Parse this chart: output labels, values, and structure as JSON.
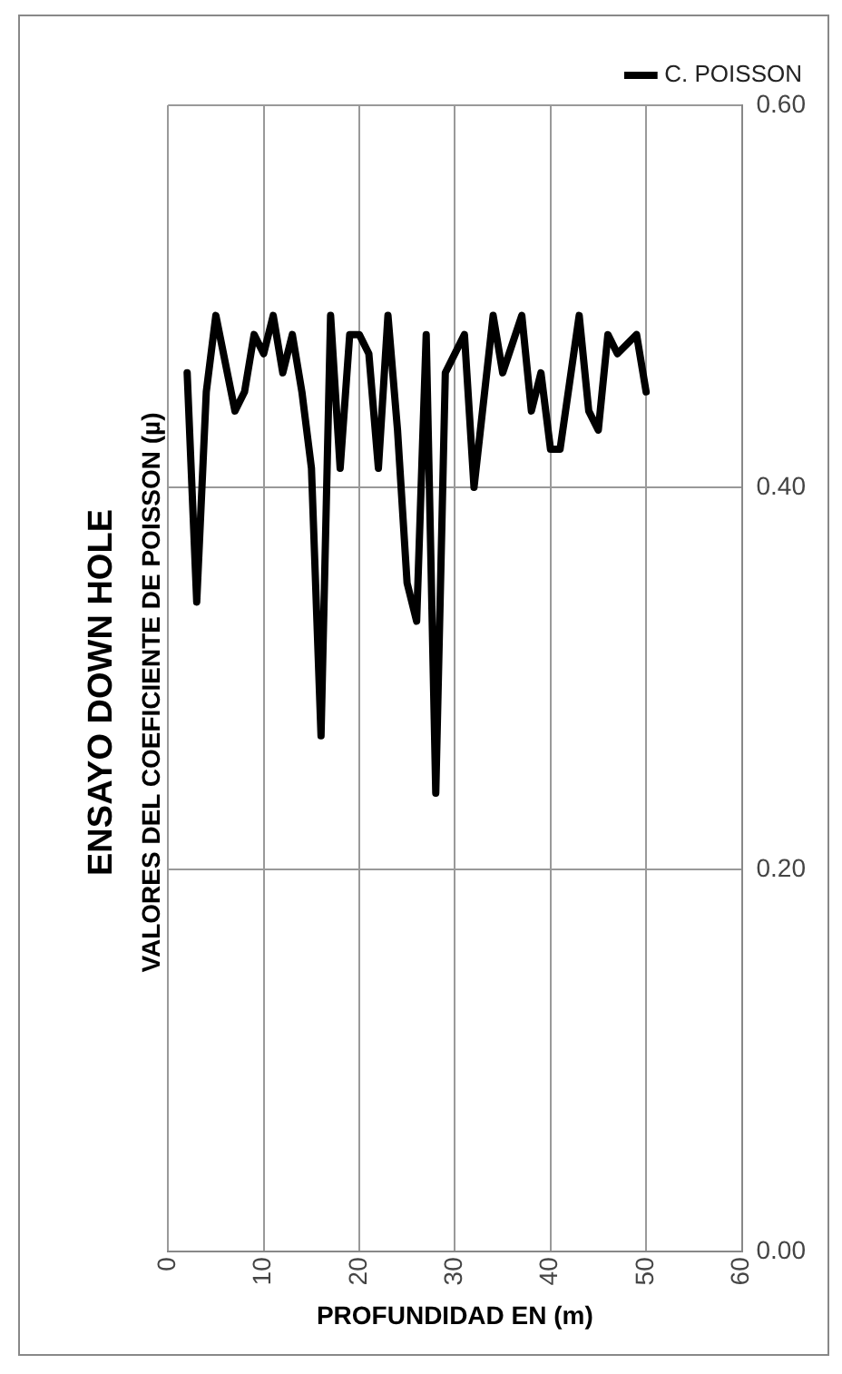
{
  "chart_data": {
    "type": "line",
    "title": "ENSAYO DOWN HOLE",
    "subtitle": "VALORES DEL COEFICIENTE DE POISSON (µ)",
    "xlabel": "PROFUNDIDAD EN (m)",
    "x": [
      2,
      3,
      4,
      5,
      7,
      8,
      9,
      10,
      11,
      12,
      13,
      14,
      15,
      16,
      17,
      18,
      19,
      20,
      21,
      22,
      23,
      24,
      25,
      26,
      27,
      28,
      29,
      31,
      32,
      34,
      35,
      37,
      38,
      39,
      40,
      41,
      43,
      44,
      45,
      46,
      47,
      49,
      50
    ],
    "series": [
      {
        "name": "C. POISSON",
        "color": "#000000",
        "values": [
          0.46,
          0.34,
          0.45,
          0.49,
          0.44,
          0.45,
          0.48,
          0.47,
          0.49,
          0.46,
          0.48,
          0.45,
          0.41,
          0.27,
          0.49,
          0.41,
          0.48,
          0.48,
          0.47,
          0.41,
          0.49,
          0.43,
          0.35,
          0.33,
          0.48,
          0.24,
          0.46,
          0.48,
          0.4,
          0.49,
          0.46,
          0.49,
          0.44,
          0.46,
          0.42,
          0.42,
          0.49,
          0.44,
          0.43,
          0.48,
          0.47,
          0.48,
          0.45
        ]
      }
    ],
    "xlim": [
      0,
      60
    ],
    "xticks": [
      0,
      10,
      20,
      30,
      40,
      50,
      60
    ],
    "ylim": [
      0,
      0.6
    ],
    "yticks": [
      {
        "value": 0,
        "label": "0.00"
      },
      {
        "value": 0.2,
        "label": "0.20"
      },
      {
        "value": 0.4,
        "label": "0.40"
      },
      {
        "value": 0.6,
        "label": "0.60"
      }
    ],
    "grid": true,
    "legend": "top right",
    "marker": "none",
    "line_style": "solid"
  }
}
